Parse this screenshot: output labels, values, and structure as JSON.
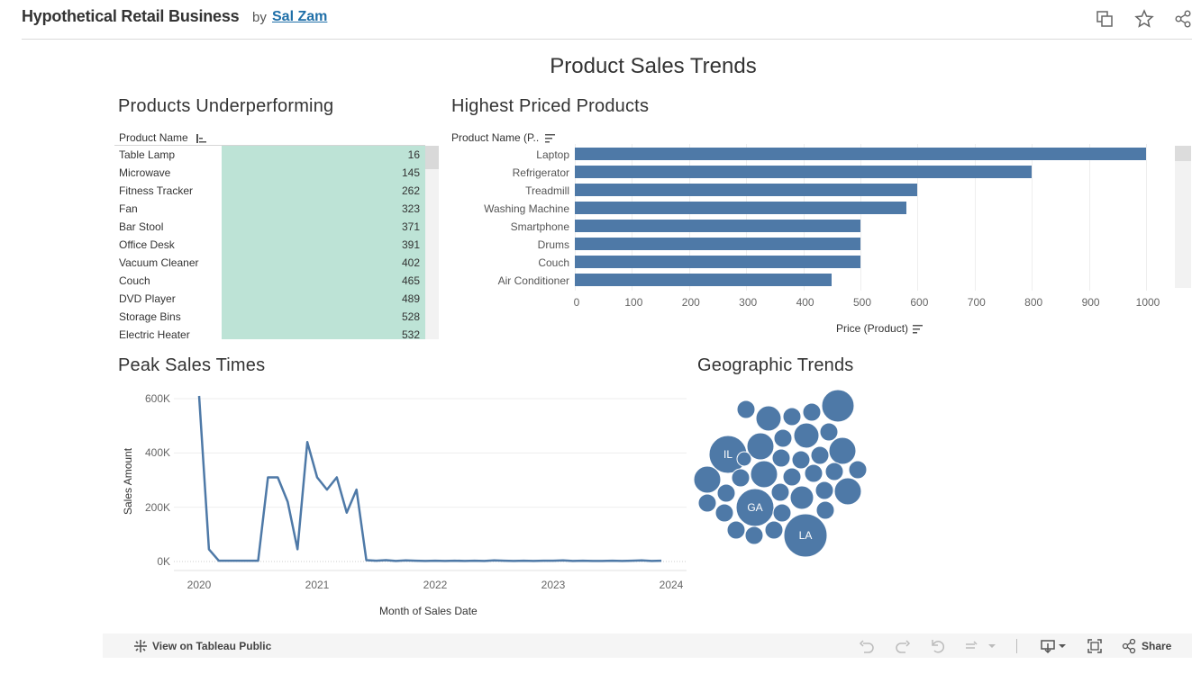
{
  "header": {
    "title": "Hypothetical Retail Business",
    "by": "by",
    "author": "Sal Zam",
    "icons": [
      "copy-icon",
      "star-icon",
      "share-network-icon"
    ]
  },
  "dashboard_title": "Product Sales Trends",
  "underperforming": {
    "title": "Products Underperforming",
    "column_header": "Product Name",
    "rows": [
      {
        "name": "Table Lamp",
        "value": "16"
      },
      {
        "name": "Microwave",
        "value": "145"
      },
      {
        "name": "Fitness Tracker",
        "value": "262"
      },
      {
        "name": "Fan",
        "value": "323"
      },
      {
        "name": "Bar Stool",
        "value": "371"
      },
      {
        "name": "Office Desk",
        "value": "391"
      },
      {
        "name": "Vacuum Cleaner",
        "value": "402"
      },
      {
        "name": "Couch",
        "value": "465"
      },
      {
        "name": "DVD Player",
        "value": "489"
      },
      {
        "name": "Storage Bins",
        "value": "528"
      },
      {
        "name": "Electric Heater",
        "value": "532"
      }
    ],
    "cell_color": "#bde3d6"
  },
  "highest_priced": {
    "title": "Highest Priced Products",
    "column_header": "Product Name (P..",
    "x_title": "Price (Product)",
    "x_ticks": [
      "0",
      "100",
      "200",
      "300",
      "400",
      "500",
      "600",
      "700",
      "800",
      "900",
      "1000"
    ]
  },
  "peak_sales": {
    "title": "Peak Sales Times",
    "y_title": "Sales Amount",
    "x_title": "Month of Sales Date",
    "y_ticks": [
      "600K",
      "400K",
      "200K",
      "0K"
    ],
    "x_ticks": [
      "2020",
      "2021",
      "2022",
      "2023",
      "2024"
    ]
  },
  "geographic": {
    "title": "Geographic Trends",
    "labels": [
      "IL",
      "GA",
      "LA"
    ]
  },
  "footer": {
    "view_link": "View on Tableau Public",
    "share_label": "Share",
    "icons": [
      "undo-icon",
      "redo-icon",
      "revert-icon",
      "refresh-icon",
      "download-icon",
      "fullscreen-icon",
      "share-icon"
    ]
  },
  "colors": {
    "accent": "#4e79a7",
    "link": "#1f6fa8"
  },
  "chart_data": [
    {
      "type": "bar",
      "title": "Highest Priced Products",
      "categories": [
        "Laptop",
        "Refrigerator",
        "Treadmill",
        "Washing Machine",
        "Smartphone",
        "Drums",
        "Couch",
        "Air Conditioner"
      ],
      "values": [
        1000,
        800,
        600,
        580,
        500,
        500,
        500,
        450
      ],
      "xlabel": "Price (Product)",
      "xlim": [
        0,
        1000
      ],
      "orientation": "horizontal"
    },
    {
      "type": "line",
      "title": "Peak Sales Times",
      "xlabel": "Month of Sales Date",
      "ylabel": "Sales Amount",
      "ylim": [
        0,
        600000
      ],
      "x": [
        "2020-01",
        "2020-02",
        "2020-03",
        "2020-04",
        "2020-05",
        "2020-06",
        "2020-07",
        "2020-08",
        "2020-09",
        "2020-10",
        "2020-11",
        "2020-12",
        "2021-01",
        "2021-02",
        "2021-03",
        "2021-04",
        "2021-05",
        "2021-06",
        "2021-07",
        "2021-08",
        "2021-09",
        "2021-10",
        "2021-11",
        "2021-12",
        "2022-01",
        "2022-02",
        "2022-03",
        "2022-04",
        "2022-05",
        "2022-06",
        "2022-07",
        "2022-08",
        "2022-09",
        "2022-10",
        "2022-11",
        "2022-12",
        "2023-01",
        "2023-02",
        "2023-03",
        "2023-04",
        "2023-05",
        "2023-06",
        "2023-07",
        "2023-08",
        "2023-09",
        "2023-10",
        "2023-11",
        "2023-12"
      ],
      "values": [
        610000,
        45000,
        3000,
        3000,
        3000,
        3000,
        3000,
        310000,
        310000,
        220000,
        45000,
        440000,
        310000,
        265000,
        310000,
        180000,
        265000,
        5000,
        3000,
        5000,
        2000,
        4000,
        3000,
        2000,
        3000,
        2000,
        3000,
        2000,
        3000,
        2000,
        4000,
        3000,
        2000,
        3000,
        2000,
        3000,
        3000,
        4000,
        2000,
        3000,
        2000,
        2000,
        3000,
        2000,
        3000,
        4000,
        2000,
        3000
      ]
    }
  ]
}
